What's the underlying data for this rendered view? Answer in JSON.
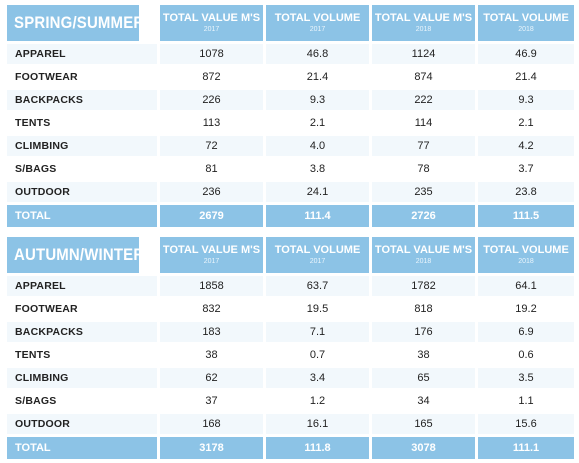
{
  "columns": {
    "value_label": "TOTAL VALUE M'S",
    "volume_label": "TOTAL VOLUME",
    "year_a": "2017",
    "year_b": "2018"
  },
  "spring_summer": {
    "title": "SPRING/SUMMER",
    "rows": [
      {
        "label": "APPAREL",
        "v17": "1078",
        "vol17": "46.8",
        "v18": "1124",
        "vol18": "46.9"
      },
      {
        "label": "FOOTWEAR",
        "v17": "872",
        "vol17": "21.4",
        "v18": "874",
        "vol18": "21.4"
      },
      {
        "label": "BACKPACKS",
        "v17": "226",
        "vol17": "9.3",
        "v18": "222",
        "vol18": "9.3"
      },
      {
        "label": "TENTS",
        "v17": "113",
        "vol17": "2.1",
        "v18": "114",
        "vol18": "2.1"
      },
      {
        "label": "CLIMBING",
        "v17": "72",
        "vol17": "4.0",
        "v18": "77",
        "vol18": "4.2"
      },
      {
        "label": "S/BAGS",
        "v17": "81",
        "vol17": "3.8",
        "v18": "78",
        "vol18": "3.7"
      },
      {
        "label": "OUTDOOR",
        "v17": "236",
        "vol17": "24.1",
        "v18": "235",
        "vol18": "23.8"
      }
    ],
    "total": {
      "label": "TOTAL",
      "v17": "2679",
      "vol17": "111.4",
      "v18": "2726",
      "vol18": "111.5"
    }
  },
  "autumn_winter": {
    "title": "AUTUMN/WINTER",
    "rows": [
      {
        "label": "APPAREL",
        "v17": "1858",
        "vol17": "63.7",
        "v18": "1782",
        "vol18": "64.1"
      },
      {
        "label": "FOOTWEAR",
        "v17": "832",
        "vol17": "19.5",
        "v18": "818",
        "vol18": "19.2"
      },
      {
        "label": "BACKPACKS",
        "v17": "183",
        "vol17": "7.1",
        "v18": "176",
        "vol18": "6.9"
      },
      {
        "label": "TENTS",
        "v17": "38",
        "vol17": "0.7",
        "v18": "38",
        "vol18": "0.6"
      },
      {
        "label": "CLIMBING",
        "v17": "62",
        "vol17": "3.4",
        "v18": "65",
        "vol18": "3.5"
      },
      {
        "label": "S/BAGS",
        "v17": "37",
        "vol17": "1.2",
        "v18": "34",
        "vol18": "1.1"
      },
      {
        "label": "OUTDOOR",
        "v17": "168",
        "vol17": "16.1",
        "v18": "165",
        "vol18": "15.6"
      }
    ],
    "total": {
      "label": "TOTAL",
      "v17": "3178",
      "vol17": "111.8",
      "v18": "3078",
      "vol18": "111.1"
    }
  },
  "colors": {
    "header_blue": "#8cc3e6",
    "row_tint": "#f2f8fc",
    "text_dark": "#222222"
  }
}
